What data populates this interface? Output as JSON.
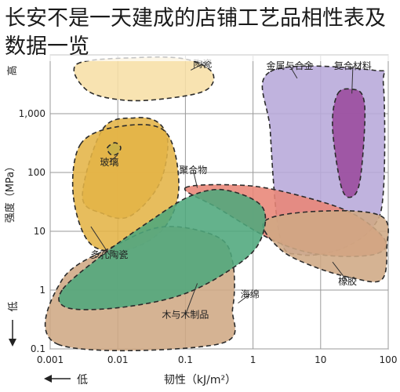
{
  "title": "长安不是一天建成的店铺工艺品相性表及数据一览",
  "chart_data": {
    "type": "area",
    "title": "长安不是一天建成的店铺工艺品相性表及数据一览",
    "xlabel": "韧性（kJ/m²）",
    "ylabel": "强度（MPa）",
    "x_scale": "log",
    "y_scale": "log",
    "xlim": [
      0.001,
      100
    ],
    "ylim": [
      0.1,
      10000
    ],
    "x_ticks": [
      "0.001",
      "0.01",
      "0.1",
      "1",
      "10",
      "100"
    ],
    "y_ticks": [
      "0.1",
      "1",
      "10",
      "100",
      "1,000"
    ],
    "x_low_label": "低",
    "y_low_label": "低",
    "y_high_label": "高",
    "grid": true,
    "regions": [
      {
        "name": "陶瓷",
        "label": "陶瓷",
        "color": "#f7dfa6",
        "polygon": [
          [
            0.0025,
            7000
          ],
          [
            0.02,
            9000
          ],
          [
            0.1,
            8500
          ],
          [
            0.25,
            5000
          ],
          [
            0.2,
            2500
          ],
          [
            0.05,
            1800
          ],
          [
            0.012,
            1700
          ],
          [
            0.0035,
            2500
          ]
        ],
        "label_at": [
          0.18,
          7000
        ],
        "leader_to": [
          0.12,
          5500
        ]
      },
      {
        "name": "金属与合金",
        "label": "金属与合金",
        "color": "#b7a8d9",
        "polygon": [
          [
            1.8,
            5200
          ],
          [
            60,
            5500
          ],
          [
            85,
            3000
          ],
          [
            85,
            50
          ],
          [
            60,
            12
          ],
          [
            20,
            5
          ],
          [
            5,
            4
          ],
          [
            2.5,
            8
          ],
          [
            1.8,
            500
          ]
        ],
        "label_at": [
          3.5,
          6500
        ],
        "leader_to": [
          4.5,
          4000
        ]
      },
      {
        "name": "复合材料",
        "label": "复合材料",
        "color": "#9a4a9d",
        "polygon": [
          [
            18,
            2200
          ],
          [
            30,
            2600
          ],
          [
            42,
            2000
          ],
          [
            45,
            700
          ],
          [
            38,
            70
          ],
          [
            28,
            38
          ],
          [
            20,
            60
          ],
          [
            15,
            600
          ]
        ],
        "label_at": [
          30,
          6500
        ],
        "leader_to": [
          29,
          2200
        ]
      },
      {
        "name": "玻璃",
        "label": "玻璃",
        "color": "#e4b447",
        "polygon": [
          [
            0.006,
            550
          ],
          [
            0.018,
            850
          ],
          [
            0.04,
            700
          ],
          [
            0.055,
            300
          ],
          [
            0.04,
            60
          ],
          [
            0.015,
            18
          ],
          [
            0.006,
            20
          ],
          [
            0.003,
            40
          ]
        ],
        "label_at": [
          0.0075,
          150
        ],
        "leader_to": [
          0.01,
          200
        ]
      },
      {
        "name": "多孔陶瓷",
        "label": "多孔陶瓷",
        "color": "#e4b447",
        "polygon": [
          [
            0.0028,
            300
          ],
          [
            0.01,
            600
          ],
          [
            0.05,
            500
          ],
          [
            0.08,
            60
          ],
          [
            0.05,
            12
          ],
          [
            0.015,
            5
          ],
          [
            0.004,
            6
          ],
          [
            0.0022,
            40
          ]
        ],
        "label_at": [
          0.0075,
          4
        ],
        "leader_to": [
          0.004,
          12
        ]
      },
      {
        "name": "玻璃 (小区域)",
        "label": "",
        "color": "#c8b048",
        "polygon": [
          [
            0.007,
            260
          ],
          [
            0.009,
            320
          ],
          [
            0.011,
            270
          ],
          [
            0.01,
            210
          ],
          [
            0.008,
            200
          ]
        ]
      },
      {
        "name": "聚合物",
        "label": "聚合物",
        "color": "#e88576",
        "polygon": [
          [
            0.1,
            55
          ],
          [
            0.8,
            60
          ],
          [
            5,
            40
          ],
          [
            30,
            20
          ],
          [
            90,
            7
          ],
          [
            60,
            4
          ],
          [
            10,
            4
          ],
          [
            2,
            7
          ],
          [
            0.3,
            25
          ]
        ],
        "label_at": [
          0.13,
          110
        ],
        "leader_to": [
          0.15,
          55
        ]
      },
      {
        "name": "橡胶",
        "label": "橡胶",
        "color": "#cfa884",
        "polygon": [
          [
            1.5,
            15
          ],
          [
            10,
            22
          ],
          [
            80,
            18
          ],
          [
            95,
            5
          ],
          [
            80,
            1.5
          ],
          [
            30,
            1.6
          ],
          [
            8,
            2.5
          ],
          [
            2.5,
            5
          ]
        ],
        "label_at": [
          25,
          1.4
        ],
        "leader_to": [
          15,
          3
        ]
      },
      {
        "name": "海绵",
        "label": "海绵",
        "color": "#cfa884",
        "polygon": [
          [
            0.0013,
            0.12
          ],
          [
            0.3,
            0.12
          ],
          [
            0.5,
            0.5
          ],
          [
            0.5,
            3
          ],
          [
            0.3,
            8
          ],
          [
            0.05,
            12
          ],
          [
            0.01,
            6
          ],
          [
            0.0015,
            1.5
          ]
        ],
        "label_at": [
          0.9,
          0.85
        ],
        "leader_to": [
          0.6,
          0.6
        ]
      },
      {
        "name": "木与木制品",
        "label": "木与木制品",
        "color": "#4fa77c",
        "polygon": [
          [
            0.0015,
            1.0
          ],
          [
            0.0018,
            0.5
          ],
          [
            0.01,
            0.5
          ],
          [
            0.08,
            0.8
          ],
          [
            0.4,
            2
          ],
          [
            1.2,
            6
          ],
          [
            1.4,
            25
          ],
          [
            0.4,
            50
          ],
          [
            0.12,
            40
          ],
          [
            0.03,
            15
          ],
          [
            0.006,
            4
          ]
        ],
        "label_at": [
          0.1,
          0.38
        ],
        "leader_to": [
          0.15,
          1.3
        ]
      }
    ]
  }
}
